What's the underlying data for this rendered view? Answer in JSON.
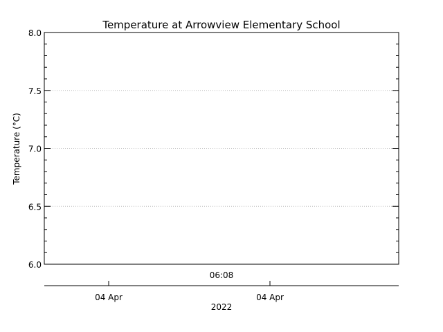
{
  "chart_data": {
    "type": "line",
    "title": "Temperature at Arrowview Elementary School",
    "ylabel": "Temperature (°C)",
    "xlabel": "2022",
    "ylim": [
      6.0,
      8.0
    ],
    "y_ticks": [
      "6.0",
      "6.5",
      "7.0",
      "7.5",
      "8.0"
    ],
    "y_tick_values": [
      6.0,
      6.5,
      7.0,
      7.5,
      8.0
    ],
    "y_minor_step": 0.1,
    "grid": "horizontal dotted",
    "time_label": "06:08",
    "x_ticks": [
      "04 Apr",
      "04 Apr"
    ],
    "series": []
  }
}
